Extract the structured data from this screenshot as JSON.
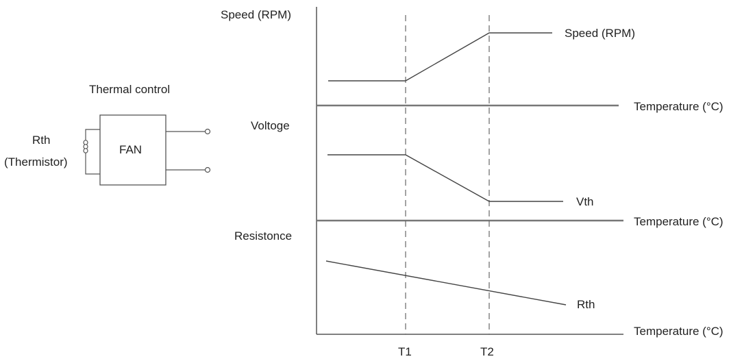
{
  "circuit": {
    "title": "Thermal control",
    "fan_label": "FAN",
    "thermistor_label_line1": "Rth",
    "thermistor_label_line2": "(Thermistor)"
  },
  "charts": {
    "speed": {
      "ylabel": "Speed (RPM)",
      "xlabel": "Temperature (°C)",
      "curve_label": "Speed (RPM)"
    },
    "voltage": {
      "ylabel": "Voltoge",
      "xlabel": "Temperature (°C)",
      "curve_label": "Vth"
    },
    "resistance": {
      "ylabel": "Resistonce",
      "xlabel": "Temperature (°C)",
      "curve_label": "Rth"
    },
    "markers": [
      "T1",
      "T2"
    ]
  },
  "chart_data": [
    {
      "type": "line",
      "ylabel": "Speed (RPM)",
      "xlabel": "Temperature (°C)",
      "series": [
        {
          "name": "Speed (RPM)",
          "points": [
            [
              "start",
              "low"
            ],
            [
              "T1",
              "low"
            ],
            [
              "T2",
              "high"
            ],
            [
              "end",
              "high"
            ]
          ]
        }
      ]
    },
    {
      "type": "line",
      "ylabel": "Voltoge",
      "xlabel": "Temperature (°C)",
      "series": [
        {
          "name": "Vth",
          "points": [
            [
              "start",
              "high"
            ],
            [
              "T1",
              "high"
            ],
            [
              "T2",
              "low"
            ],
            [
              "end",
              "low"
            ]
          ]
        }
      ]
    },
    {
      "type": "line",
      "ylabel": "Resistonce",
      "xlabel": "Temperature (°C)",
      "series": [
        {
          "name": "Rth",
          "points": [
            [
              "start",
              "high"
            ],
            [
              "end",
              "low"
            ]
          ]
        }
      ]
    }
  ]
}
